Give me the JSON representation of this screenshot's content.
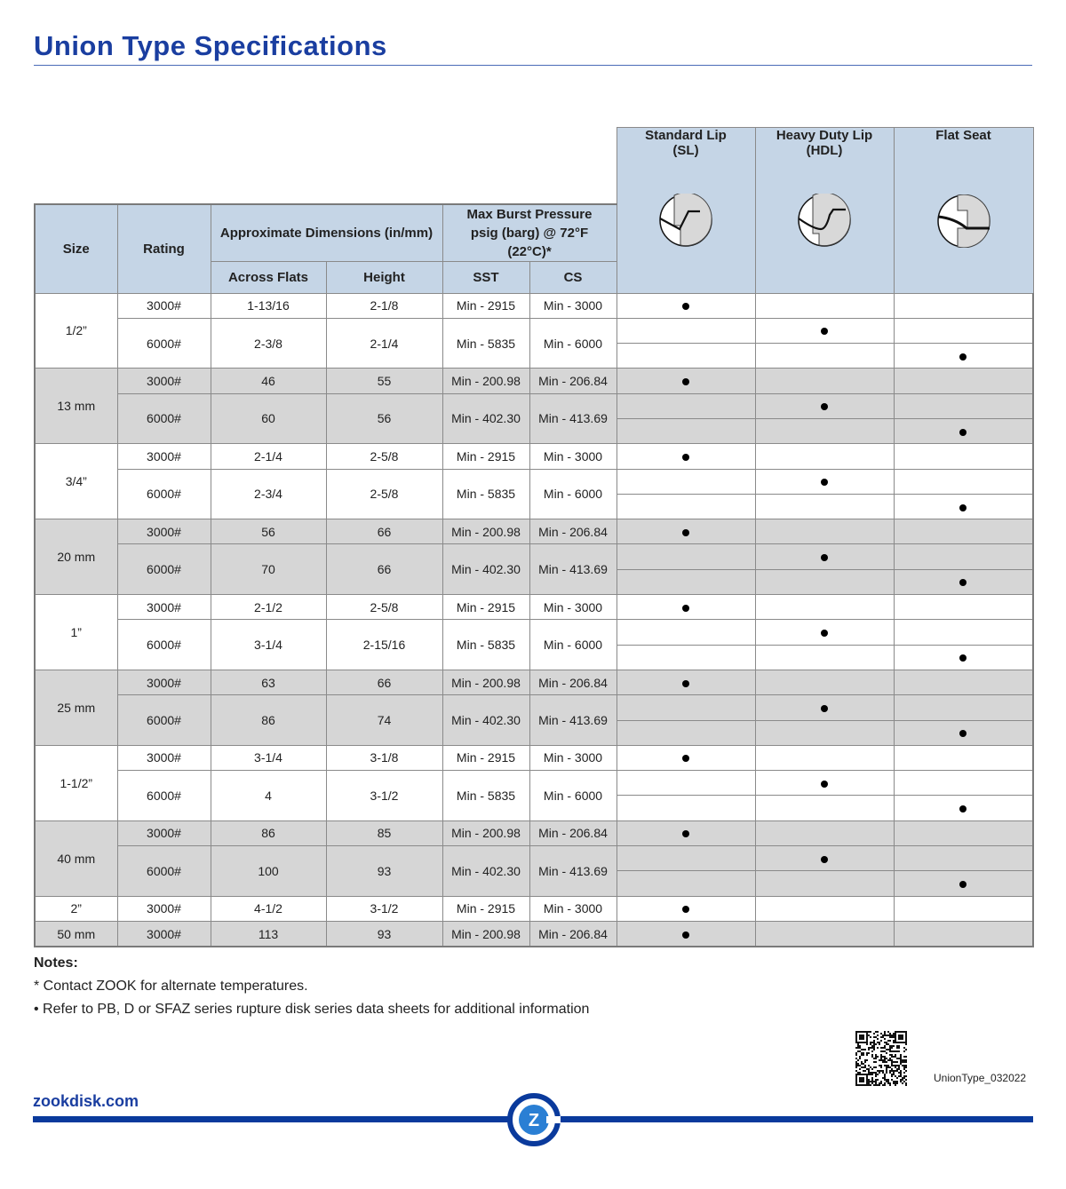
{
  "header": {
    "title": "Union Type Specifications"
  },
  "table": {
    "col_size": "Size",
    "col_rating": "Rating",
    "col_dims": "Approximate Dimensions (in/mm)",
    "col_burst": "Max Burst Pressure psig (barg) @ 72°F (22°C)*",
    "col_af": "Across Flats",
    "col_height": "Height",
    "col_sst": "SST",
    "col_cs": "CS",
    "seat_types": [
      {
        "label": "Standard Lip (SL)",
        "icon": "standard-lip-icon"
      },
      {
        "label": "Heavy Duty Lip (HDL)",
        "icon": "heavy-duty-lip-icon"
      },
      {
        "label": "Flat Seat",
        "icon": "flat-seat-icon"
      }
    ],
    "groups": [
      {
        "size": "1/2”",
        "shaded": false,
        "rows": [
          {
            "rating": "3000#",
            "af": "1-13/16",
            "height": "2-1/8",
            "sst": "Min - 2915",
            "cs": "Min - 3000"
          },
          {
            "rating": "6000#",
            "af": "2-3/8",
            "height": "2-1/4",
            "sst": "Min - 5835",
            "cs": "Min - 6000"
          }
        ]
      },
      {
        "size": "13 mm",
        "shaded": true,
        "rows": [
          {
            "rating": "3000#",
            "af": "46",
            "height": "55",
            "sst": "Min - 200.98",
            "cs": "Min - 206.84"
          },
          {
            "rating": "6000#",
            "af": "60",
            "height": "56",
            "sst": "Min - 402.30",
            "cs": "Min - 413.69"
          }
        ]
      },
      {
        "size": "3/4”",
        "shaded": false,
        "rows": [
          {
            "rating": "3000#",
            "af": "2-1/4",
            "height": "2-5/8",
            "sst": "Min - 2915",
            "cs": "Min - 3000"
          },
          {
            "rating": "6000#",
            "af": "2-3/4",
            "height": "2-5/8",
            "sst": "Min - 5835",
            "cs": "Min - 6000"
          }
        ]
      },
      {
        "size": "20 mm",
        "shaded": true,
        "rows": [
          {
            "rating": "3000#",
            "af": "56",
            "height": "66",
            "sst": "Min - 200.98",
            "cs": "Min - 206.84"
          },
          {
            "rating": "6000#",
            "af": "70",
            "height": "66",
            "sst": "Min - 402.30",
            "cs": "Min - 413.69"
          }
        ]
      },
      {
        "size": "1”",
        "shaded": false,
        "rows": [
          {
            "rating": "3000#",
            "af": "2-1/2",
            "height": "2-5/8",
            "sst": "Min - 2915",
            "cs": "Min - 3000"
          },
          {
            "rating": "6000#",
            "af": "3-1/4",
            "height": "2-15/16",
            "sst": "Min - 5835",
            "cs": "Min - 6000"
          }
        ]
      },
      {
        "size": "25 mm",
        "shaded": true,
        "rows": [
          {
            "rating": "3000#",
            "af": "63",
            "height": "66",
            "sst": "Min - 200.98",
            "cs": "Min - 206.84"
          },
          {
            "rating": "6000#",
            "af": "86",
            "height": "74",
            "sst": "Min - 402.30",
            "cs": "Min - 413.69"
          }
        ]
      },
      {
        "size": "1-1/2”",
        "shaded": false,
        "rows": [
          {
            "rating": "3000#",
            "af": "3-1/4",
            "height": "3-1/8",
            "sst": "Min - 2915",
            "cs": "Min - 3000"
          },
          {
            "rating": "6000#",
            "af": "4",
            "height": "3-1/2",
            "sst": "Min - 5835",
            "cs": "Min - 6000"
          }
        ]
      },
      {
        "size": "40 mm",
        "shaded": true,
        "rows": [
          {
            "rating": "3000#",
            "af": "86",
            "height": "85",
            "sst": "Min - 200.98",
            "cs": "Min - 206.84"
          },
          {
            "rating": "6000#",
            "af": "100",
            "height": "93",
            "sst": "Min - 402.30",
            "cs": "Min - 413.69"
          }
        ]
      },
      {
        "size": "2”",
        "shaded": false,
        "rows": [
          {
            "rating": "3000#",
            "af": "4-1/2",
            "height": "3-1/2",
            "sst": "Min - 2915",
            "cs": "Min - 3000"
          }
        ]
      },
      {
        "size": "50 mm",
        "shaded": true,
        "rows": [
          {
            "rating": "3000#",
            "af": "113",
            "height": "93",
            "sst": "Min - 200.98",
            "cs": "Min - 206.84"
          }
        ]
      }
    ]
  },
  "notes": {
    "heading": "Notes:",
    "items": [
      "* Contact ZOOK for alternate temperatures.",
      "• Refer to PB, D or SFAZ series rupture disk series data sheets for additional information"
    ]
  },
  "footer": {
    "doc_id": "UnionType_032022",
    "website": "zookdisk.com",
    "logo_letter": "Z",
    "brand_color": "#0a3a9c"
  }
}
